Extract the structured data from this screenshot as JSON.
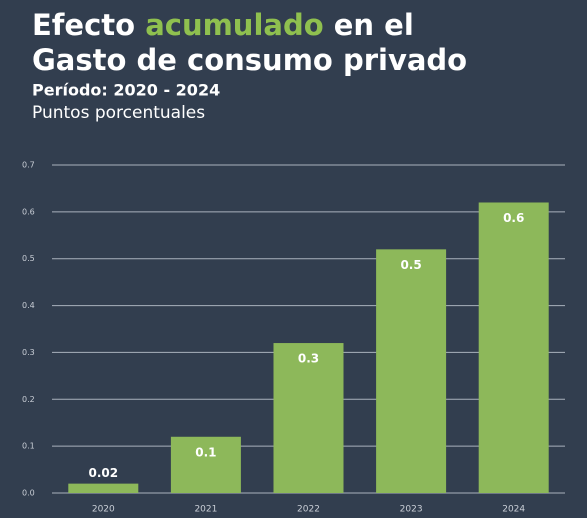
{
  "chart_data": {
    "type": "bar",
    "title": [
      "Efecto",
      "acumulado",
      "en el",
      "Gasto de consumo privado"
    ],
    "highlight_color": "#8fc04f",
    "subtitle": "Período: 2020 - 2024",
    "units": "Puntos porcentuales",
    "categories": [
      "2020",
      "2021",
      "2022",
      "2023",
      "2024"
    ],
    "values": [
      0.02,
      0.12,
      0.32,
      0.52,
      0.62
    ],
    "value_labels": [
      "0.02",
      "0.1",
      "0.3",
      "0.5",
      "0.6"
    ],
    "color": "#8db85a",
    "ylim": [
      0,
      0.7
    ],
    "yticks": [
      {
        "value": 0,
        "label": "0.0"
      },
      0.1,
      0.2,
      0.3,
      0.4,
      0.5,
      0.6,
      0.7
    ],
    "grid": true
  }
}
